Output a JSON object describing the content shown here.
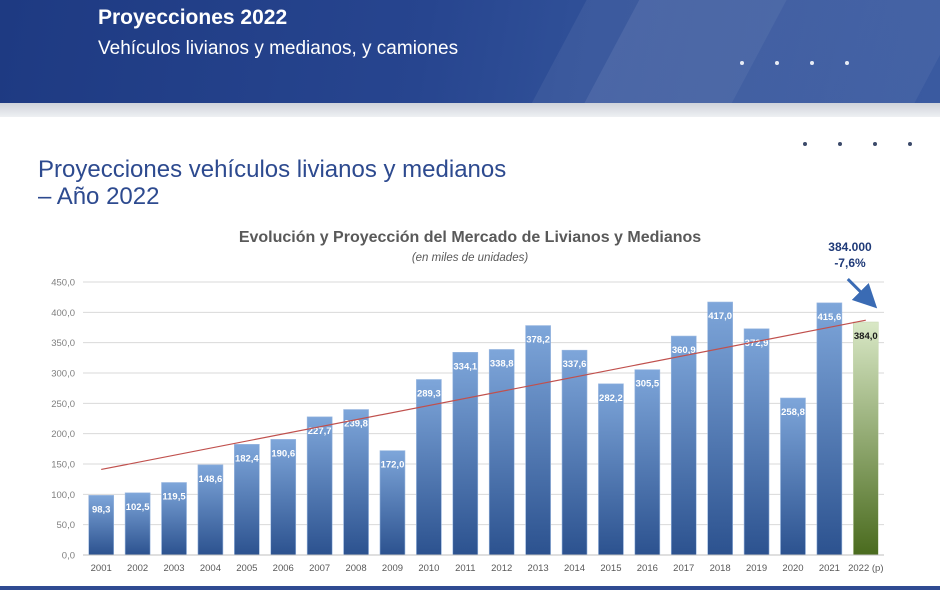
{
  "header": {
    "title": "Proyecciones 2022",
    "subtitle": "Vehículos livianos y medianos, y camiones"
  },
  "section": {
    "title": "Proyecciones vehículos livianos y medianos – Año 2022"
  },
  "colors": {
    "banner": "#27458f",
    "section_title": "#2d4a8f",
    "bar_blue_top": "#7ea6da",
    "bar_blue_bottom": "#2c528f",
    "bar_green_top": "#d9e8c6",
    "bar_green_bottom": "#4a6b1e",
    "trendline": "#c0504d",
    "annotation": "#1f3a78"
  },
  "annotation": {
    "value": "384.000",
    "change": "-7,6%",
    "icon": "arrow-down-right-icon"
  },
  "chart_data": {
    "type": "bar",
    "title": "Evolución y Proyección del Mercado de Livianos y Medianos",
    "subtitle": "(en miles de unidades)",
    "xlabel": "",
    "ylabel": "",
    "ylim": [
      0,
      450
    ],
    "yticks": [
      "0,0",
      "50,0",
      "100,0",
      "150,0",
      "200,0",
      "250,0",
      "300,0",
      "350,0",
      "400,0",
      "450,0"
    ],
    "grid": true,
    "categories": [
      "2001",
      "2002",
      "2003",
      "2004",
      "2005",
      "2006",
      "2007",
      "2008",
      "2009",
      "2010",
      "2011",
      "2012",
      "2013",
      "2014",
      "2015",
      "2016",
      "2017",
      "2018",
      "2019",
      "2020",
      "2021",
      "2022 (p)"
    ],
    "values": [
      98.3,
      102.5,
      119.5,
      148.6,
      182.4,
      190.6,
      227.7,
      239.8,
      172.0,
      289.3,
      334.1,
      338.8,
      378.2,
      337.6,
      282.2,
      305.5,
      360.9,
      417.0,
      372.9,
      258.8,
      415.6,
      384.0
    ],
    "labels": [
      "98,3",
      "102,5",
      "119,5",
      "148,6",
      "182,4",
      "190,6",
      "227,7",
      "239,8",
      "172,0",
      "289,3",
      "334,1",
      "338,8",
      "378,2",
      "337,6",
      "282,2",
      "305,5",
      "360,9",
      "417,0",
      "372,9",
      "258,8",
      "415,6",
      "384,0"
    ],
    "highlight_index": 21,
    "trendline": {
      "type": "linear",
      "start": 141,
      "end": 387
    }
  }
}
